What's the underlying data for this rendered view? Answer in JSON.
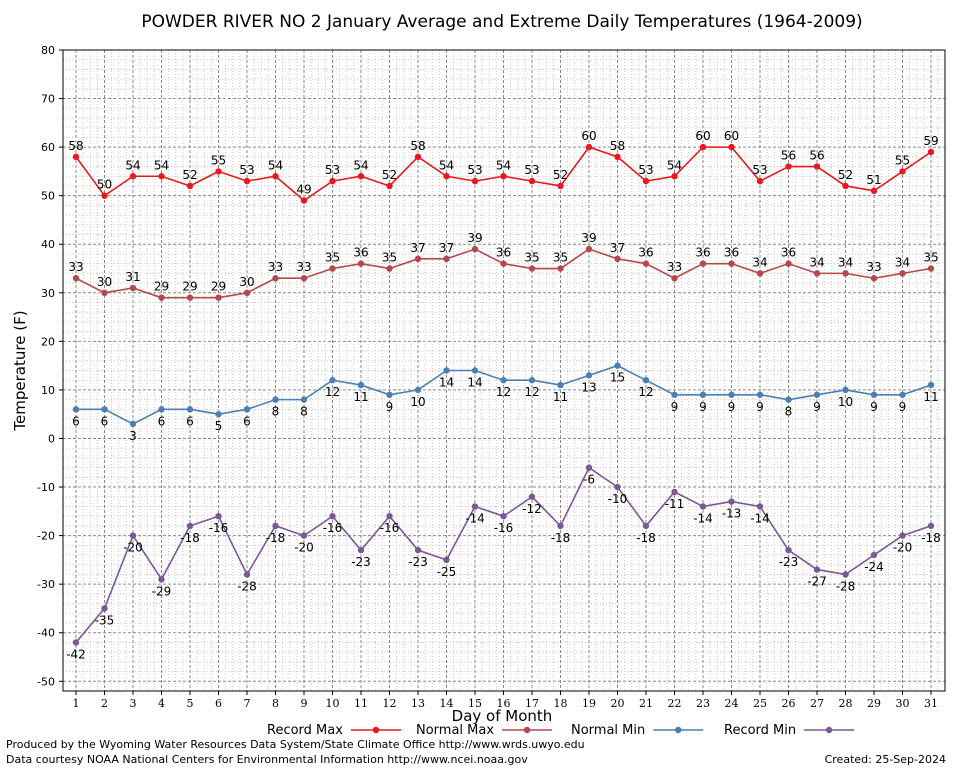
{
  "chart_data": {
    "type": "line",
    "title": "POWDER RIVER NO 2 January Average and Extreme Daily Temperatures (1964-2009)",
    "xlabel": "Day of Month",
    "ylabel": "Temperature (F)",
    "ylim": [
      -52,
      80
    ],
    "yticks": [
      80,
      70,
      60,
      50,
      40,
      30,
      20,
      10,
      0,
      -10,
      -20,
      -30,
      -40,
      -50
    ],
    "x": [
      1,
      2,
      3,
      4,
      5,
      6,
      7,
      8,
      9,
      10,
      11,
      12,
      13,
      14,
      15,
      16,
      17,
      18,
      19,
      20,
      21,
      22,
      23,
      24,
      25,
      26,
      27,
      28,
      29,
      30,
      31
    ],
    "grid": true,
    "legend_position": "bottom",
    "series": [
      {
        "name": "Record Max",
        "color": "#e8191c",
        "label_pos": "above",
        "values": [
          58,
          50,
          54,
          54,
          52,
          55,
          53,
          54,
          49,
          53,
          54,
          52,
          58,
          54,
          53,
          54,
          53,
          52,
          60,
          58,
          53,
          54,
          60,
          60,
          53,
          56,
          56,
          52,
          51,
          55,
          59
        ]
      },
      {
        "name": "Normal Max",
        "color": "#b5474d",
        "label_pos": "above",
        "values": [
          33,
          30,
          31,
          29,
          29,
          29,
          30,
          33,
          33,
          35,
          36,
          35,
          37,
          37,
          39,
          36,
          35,
          35,
          39,
          37,
          36,
          33,
          36,
          36,
          34,
          36,
          34,
          34,
          33,
          34,
          35
        ]
      },
      {
        "name": "Normal Min",
        "color": "#4a7fb5",
        "label_pos": "below",
        "values": [
          6,
          6,
          3,
          6,
          6,
          5,
          6,
          8,
          8,
          12,
          11,
          9,
          10,
          14,
          14,
          12,
          12,
          11,
          13,
          15,
          12,
          9,
          9,
          9,
          9,
          8,
          9,
          10,
          9,
          9,
          11
        ]
      },
      {
        "name": "Record Min",
        "color": "#7b5798",
        "label_pos": "below",
        "values": [
          -42,
          -35,
          -20,
          -29,
          -18,
          -16,
          -28,
          -18,
          -20,
          -16,
          -23,
          -16,
          -23,
          -25,
          -14,
          -16,
          -12,
          -18,
          -6,
          -10,
          -18,
          -11,
          -14,
          -13,
          -14,
          -23,
          -27,
          -28,
          -24,
          -20,
          -18
        ]
      }
    ]
  },
  "footer": {
    "produced_by": "Produced by the Wyoming Water Resources Data System/State Climate Office http://www.wrds.uwyo.edu",
    "data_courtesy": "Data courtesy NOAA National Centers for Environmental Information http://www.ncei.noaa.gov",
    "created": "Created:  25-Sep-2024"
  }
}
